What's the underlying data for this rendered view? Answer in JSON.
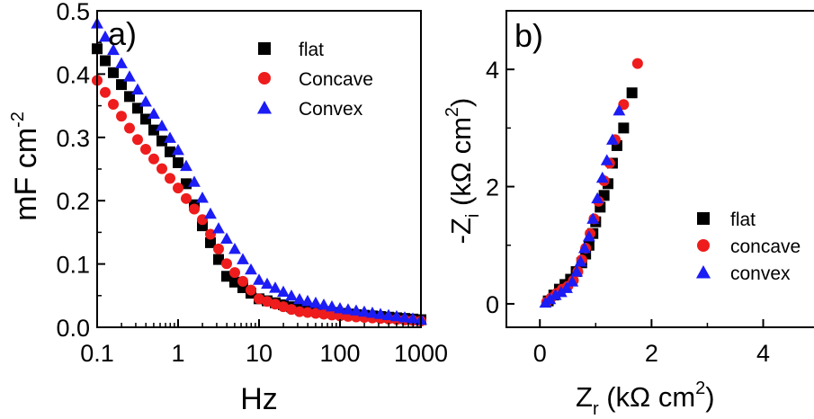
{
  "chart_data": [
    {
      "type": "scatter",
      "panel_label": "a)",
      "xlabel": "Hz",
      "ylabel_main": "mF cm",
      "ylabel_sup": "-2",
      "x_scale": "log",
      "xlim": [
        0.1,
        1000
      ],
      "ylim": [
        0.0,
        0.5
      ],
      "x_ticks": [
        {
          "value": 0.1,
          "label": "0.1"
        },
        {
          "value": 1,
          "label": "1"
        },
        {
          "value": 10,
          "label": "10"
        },
        {
          "value": 100,
          "label": "100"
        },
        {
          "value": 1000,
          "label": "1000"
        }
      ],
      "y_ticks": [
        {
          "value": 0.0,
          "label": "0.0"
        },
        {
          "value": 0.1,
          "label": "0.1"
        },
        {
          "value": 0.2,
          "label": "0.2"
        },
        {
          "value": 0.3,
          "label": "0.3"
        },
        {
          "value": 0.4,
          "label": "0.4"
        },
        {
          "value": 0.5,
          "label": "0.5"
        }
      ],
      "legend_position": "top-right",
      "series": [
        {
          "name": "flat",
          "marker": "square",
          "color": "#000000",
          "anchors": [
            [
              0.1,
              0.44
            ],
            [
              0.3,
              0.35
            ],
            [
              1,
              0.26
            ],
            [
              2,
              0.16
            ],
            [
              4,
              0.08
            ],
            [
              10,
              0.045
            ],
            [
              30,
              0.03
            ],
            [
              100,
              0.022
            ],
            [
              1000,
              0.012
            ]
          ]
        },
        {
          "name": "Concave",
          "marker": "circle",
          "color": "#ee1c1c",
          "anchors": [
            [
              0.1,
              0.39
            ],
            [
              0.3,
              0.3
            ],
            [
              1,
              0.22
            ],
            [
              2,
              0.17
            ],
            [
              4,
              0.1
            ],
            [
              10,
              0.045
            ],
            [
              30,
              0.025
            ],
            [
              100,
              0.018
            ],
            [
              1000,
              0.01
            ]
          ]
        },
        {
          "name": "Convex",
          "marker": "triangle",
          "color": "#1c1cf5",
          "anchors": [
            [
              0.1,
              0.48
            ],
            [
              0.3,
              0.38
            ],
            [
              1,
              0.28
            ],
            [
              3,
              0.16
            ],
            [
              10,
              0.075
            ],
            [
              30,
              0.045
            ],
            [
              100,
              0.03
            ],
            [
              1000,
              0.012
            ]
          ]
        }
      ]
    },
    {
      "type": "scatter",
      "panel_label": "b)",
      "xlabel_main": "Z",
      "xlabel_sub": "r",
      "xlabel_rest": " (kΩ cm",
      "xlabel_sup": "2",
      "xlabel_end": ")",
      "ylabel_main": "-Z",
      "ylabel_sub": "i",
      "ylabel_rest": " (kΩ cm",
      "ylabel_sup": "2",
      "ylabel_end": ")",
      "xlim": [
        -0.6,
        5.2
      ],
      "ylim": [
        -0.4,
        5.0
      ],
      "x_ticks": [
        {
          "value": 0,
          "label": "0"
        },
        {
          "value": 2,
          "label": "2"
        },
        {
          "value": 4,
          "label": "4"
        }
      ],
      "y_ticks": [
        {
          "value": 0,
          "label": "0"
        },
        {
          "value": 2,
          "label": "2"
        },
        {
          "value": 4,
          "label": "4"
        }
      ],
      "legend_position": "center-right",
      "series": [
        {
          "name": "flat",
          "marker": "square",
          "color": "#000000",
          "points": [
            [
              0.15,
              0.05
            ],
            [
              0.25,
              0.15
            ],
            [
              0.35,
              0.25
            ],
            [
              0.45,
              0.33
            ],
            [
              0.55,
              0.42
            ],
            [
              0.65,
              0.55
            ],
            [
              0.75,
              0.7
            ],
            [
              0.82,
              0.85
            ],
            [
              0.88,
              1.0
            ],
            [
              0.95,
              1.2
            ],
            [
              1.0,
              1.4
            ],
            [
              1.08,
              1.65
            ],
            [
              1.15,
              1.85
            ],
            [
              1.22,
              2.05
            ],
            [
              1.3,
              2.4
            ],
            [
              1.38,
              2.7
            ],
            [
              1.5,
              3.0
            ],
            [
              1.65,
              3.6
            ]
          ]
        },
        {
          "name": "concave",
          "marker": "circle",
          "color": "#ee1c1c",
          "points": [
            [
              0.12,
              0.03
            ],
            [
              0.2,
              0.1
            ],
            [
              0.3,
              0.18
            ],
            [
              0.4,
              0.25
            ],
            [
              0.5,
              0.3
            ],
            [
              0.6,
              0.4
            ],
            [
              0.68,
              0.55
            ],
            [
              0.75,
              0.75
            ],
            [
              0.82,
              0.95
            ],
            [
              0.9,
              1.2
            ],
            [
              0.97,
              1.45
            ],
            [
              1.05,
              1.75
            ],
            [
              1.15,
              2.1
            ],
            [
              1.25,
              2.4
            ],
            [
              1.35,
              2.8
            ],
            [
              1.5,
              3.4
            ],
            [
              1.75,
              4.1
            ]
          ]
        },
        {
          "name": "convex",
          "marker": "triangle",
          "color": "#1c1cf5",
          "points": [
            [
              0.1,
              0.02
            ],
            [
              0.18,
              0.08
            ],
            [
              0.28,
              0.15
            ],
            [
              0.38,
              0.2
            ],
            [
              0.48,
              0.27
            ],
            [
              0.58,
              0.38
            ],
            [
              0.66,
              0.55
            ],
            [
              0.73,
              0.72
            ],
            [
              0.8,
              0.95
            ],
            [
              0.88,
              1.15
            ],
            [
              0.95,
              1.45
            ],
            [
              1.03,
              1.8
            ],
            [
              1.12,
              2.15
            ],
            [
              1.2,
              2.45
            ],
            [
              1.3,
              2.8
            ],
            [
              1.42,
              3.3
            ]
          ]
        }
      ]
    }
  ]
}
